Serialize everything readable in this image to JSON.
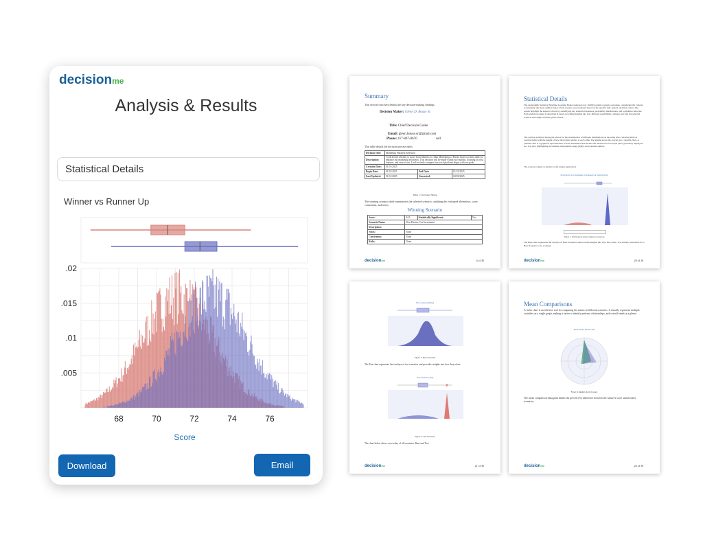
{
  "app": {
    "logo": "decision",
    "logo_suffix": "me",
    "title": "Analysis & Results",
    "section_label": "Statistical Details",
    "chart_title": "Winner vs Runner Up",
    "download_label": "Download",
    "email_label": "Email"
  },
  "colors": {
    "accent": "#1266b2",
    "runner_up": "#d9847c",
    "winner": "#6a6fc0",
    "logo_green": "#4caf50"
  },
  "chart_data": {
    "type": "histogram",
    "xlabel": "Score",
    "ylabel": "",
    "xlim": [
      66,
      78
    ],
    "ylim": [
      0,
      0.02
    ],
    "x_ticks": [
      68,
      70,
      72,
      74,
      76
    ],
    "x_tick_labels": [
      "68",
      "70",
      "72",
      "74",
      "76"
    ],
    "y_ticks": [
      0.005,
      0.01,
      0.015,
      0.02
    ],
    "y_tick_labels": [
      ".005",
      ".01",
      ".015",
      ".02"
    ],
    "grid": true,
    "series": [
      {
        "color": "#d9847c",
        "mean": 71.1,
        "sd": 1.9,
        "peak": 0.0165,
        "box": {
          "min": 66.5,
          "q1": 69.7,
          "median": 70.6,
          "q3": 71.5,
          "max": 75.0
        }
      },
      {
        "color": "#6a6fc0",
        "mean": 72.9,
        "sd": 1.9,
        "peak": 0.0165,
        "box": {
          "min": 67.6,
          "q1": 71.5,
          "median": 72.3,
          "q3": 73.2,
          "max": 77.5
        }
      }
    ]
  },
  "pages": [
    {
      "heading": "Summary",
      "intro": "This section concisely details the key decision-making findings.",
      "fields": [
        {
          "label": "Decision Maker:",
          "value": "Glenn D. Bouse Sr."
        },
        {
          "label": "Title:",
          "value": "Chief Decision Guide"
        },
        {
          "label": "Email:",
          "value": "glenn.bouse.sr@gmail.com"
        },
        {
          "label": "Phone:",
          "value": "417-867-8676"
        }
      ],
      "phone_type": "cell",
      "table_intro": "This table details the decision process dates.",
      "process_rows": [
        [
          "Decision Title:",
          "Marketing Platform Selection"
        ],
        [
          "Description:",
          "I will decide whether to move from Markets to either Mailchimp or Pardot based on their ability to enhance our marketing efficiency. This decision will be made within two months, focusing on cost, features, and ease of use. I will actively compare how each platform aligns with our goals."
        ],
        [
          "Creation Date:",
          "01/01/2025"
        ]
      ],
      "date_rows": [
        [
          "Begin Date:",
          "01/01/2025",
          "End Date:",
          "01/31/2025"
        ],
        [
          "Last Updated:",
          "01/31/2025",
          "Generated:",
          "02/03/2025"
        ]
      ],
      "table1_caption": "Table 1: Decision Timing",
      "scenario_intro": "The winning scenario table summarizes the selected scenario, outlining the evaluated alternative, score, constraints, and notes.",
      "scenario_heading": "Winning Scenario",
      "score_row": [
        "Score:",
        "94.5",
        "Statistically Significant:",
        "Yes"
      ],
      "scenario_rows": [
        [
          "Scenario Name:",
          "New Electric Car Investment"
        ],
        [
          "Description:",
          ""
        ],
        [
          "Notes:",
          "None"
        ],
        [
          "Constraints:",
          "None"
        ],
        [
          "Risks:",
          "None"
        ]
      ],
      "page_num": "4 of 30"
    },
    {
      "heading": "Statistical Details",
      "para1": "The decisionMe Statistical Machine Learning Model analyzed over 10,000 possible scenario outcomes, considering the Criteria to determine the most optimal choice. Each scenario was evaluated based on the specific min, typical, and max values. The results highlight the superior choice by quantifying key statistical measures, probability distributions, and confidence intervals. Each statistical output is described in detail, providing insights into how different possibilities compare and why the selected scenario best aligns with the given criteria.",
      "para2": "The overlay statistical histogram allows for the visualization of different distributions on the same chart. Viewing them as overlays helps with the insight of how they relate relative to each other. The graphs above the overlay are a quartile chart. A quartile chart is a graphical representation of data distribution that divides the dataset into four equal parts (quartiles), displayed as a box plot, highlighting the median, interquartile range (IQR), and potential outliers.",
      "para3": "The scenario winner is relative to the runner-up (below).",
      "mini_title": "New Electric Car Investment vs Promoted Car Position (Test)",
      "caption": "Figure 1: Test Scenario winner relative to runner-up",
      "para4": "The Base chart represents the overlays of Base Scenarios and provides insights into how they relate. It is entirely reasonable for a Base Scenario to be a winner.",
      "page_num": "20 of 30"
    },
    {
      "mini_title1": "New scenarios (Base)",
      "caption1": "Figure 2: Base Scenarios",
      "para1": "The Test chart represents the overlays of test scenarios and provides insights into how they relate.",
      "mini_title2": "Test scenarios (Test)",
      "caption2": "Figure 3: Test Scenarios",
      "para2": "The chart below shows an overlay of all scenarios. Base and Test.",
      "page_num": "21 of 30"
    },
    {
      "heading": "Mean Comparisons",
      "para1": "A violet chart is an effective tool for comparing the means of different scenarios. It visually represents multiple variables on a single graph, making it easier to identify patterns, relationships, and overall trends at a glance.",
      "mini_title": "Mean Values Radar Chart",
      "caption": "Figure 4: Radial chart of means",
      "para2": "The mean comparison histogram details the percent (%) difference between the winner's score and all other scenarios.",
      "page_num": "24 of 30"
    }
  ]
}
